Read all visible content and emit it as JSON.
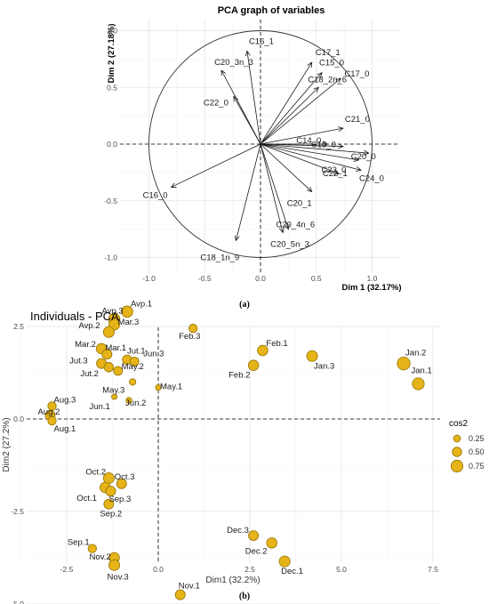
{
  "chart_data": [
    {
      "type": "scatter",
      "subtype": "pca-variables-correlation-circle",
      "title": "PCA graph of variables",
      "xlabel": "Dim 1 (32.17%)",
      "ylabel": "Dim 2 (27.18%)",
      "xlim": [
        -1.0,
        1.0
      ],
      "ylim": [
        -1.0,
        1.0
      ],
      "xticks": [
        "-1.0",
        "-0.5",
        "0.0",
        "0.5",
        "1.0"
      ],
      "yticks": [
        "-1.0",
        "-0.5",
        "0.0",
        "0.5",
        "1.0"
      ],
      "grid": true,
      "caption": "(a)",
      "arrows": [
        {
          "label": "C16_1",
          "x": -0.12,
          "y": 0.82
        },
        {
          "label": "C17_1",
          "x": 0.46,
          "y": 0.72
        },
        {
          "label": "C20_3n_3",
          "x": -0.35,
          "y": 0.65
        },
        {
          "label": "C15_0",
          "x": 0.55,
          "y": 0.63
        },
        {
          "label": "C17_0",
          "x": 0.72,
          "y": 0.58
        },
        {
          "label": "C18_2n_6",
          "x": 0.52,
          "y": 0.5
        },
        {
          "label": "C22_0",
          "x": -0.24,
          "y": 0.42
        },
        {
          "label": "C21_0",
          "x": 0.74,
          "y": 0.14
        },
        {
          "label": "C14_0",
          "x": 0.6,
          "y": 0.0
        },
        {
          "label": "C18_0",
          "x": 0.74,
          "y": -0.02
        },
        {
          "label": "C20_0",
          "x": 0.97,
          "y": -0.08
        },
        {
          "label": "C23_0",
          "x": 0.88,
          "y": -0.14
        },
        {
          "label": "C22_1",
          "x": 0.7,
          "y": -0.26
        },
        {
          "label": "C24_0",
          "x": 0.9,
          "y": -0.23
        },
        {
          "label": "C20_1",
          "x": 0.46,
          "y": -0.42
        },
        {
          "label": "C16_0",
          "x": -0.8,
          "y": -0.38
        },
        {
          "label": "C20_4n_6",
          "x": 0.25,
          "y": -0.75
        },
        {
          "label": "C20_5n_3",
          "x": 0.2,
          "y": -0.78
        },
        {
          "label": "C18_1n_9",
          "x": -0.22,
          "y": -0.85
        }
      ]
    },
    {
      "type": "scatter",
      "subtype": "pca-individuals",
      "title": "Individuals - PCA",
      "xlabel": "Dim1 (32.2%)",
      "ylabel": "Dim2 (27.2%)",
      "xlim": [
        -3.2,
        7.8
      ],
      "ylim": [
        -5.2,
        3.2
      ],
      "xticks": [
        "-2.5",
        "0.0",
        "2.5",
        "5.0",
        "7.5"
      ],
      "yticks": [
        "-5.0",
        "-2.5",
        "0.0",
        "2.5"
      ],
      "grid": true,
      "caption": "(b)",
      "legend": {
        "title": "cos2",
        "position": "right",
        "entries": [
          "0.25",
          "0.50",
          "0.75"
        ]
      },
      "points": [
        {
          "label": "Avp.3",
          "x": -1.2,
          "y": 2.7,
          "cos2": 0.7
        },
        {
          "label": "Avp.1",
          "x": -0.85,
          "y": 2.9,
          "cos2": 0.7
        },
        {
          "label": "Mar.3",
          "x": -1.2,
          "y": 2.55,
          "cos2": 0.65
        },
        {
          "label": "Avp.2",
          "x": -1.35,
          "y": 2.35,
          "cos2": 0.65
        },
        {
          "label": "Feb.3",
          "x": 0.95,
          "y": 2.45,
          "cos2": 0.4
        },
        {
          "label": "Mar.2",
          "x": -1.55,
          "y": 1.9,
          "cos2": 0.6
        },
        {
          "label": "Mar.1",
          "x": -1.4,
          "y": 1.75,
          "cos2": 0.55
        },
        {
          "label": "Jut.1",
          "x": -0.85,
          "y": 1.6,
          "cos2": 0.5
        },
        {
          "label": "Jut.3",
          "x": -1.55,
          "y": 1.5,
          "cos2": 0.55
        },
        {
          "label": "Jut.2",
          "x": -1.35,
          "y": 1.4,
          "cos2": 0.5
        },
        {
          "label": "Jun.3",
          "x": -0.65,
          "y": 1.55,
          "cos2": 0.45
        },
        {
          "label": "May.2",
          "x": -1.1,
          "y": 1.3,
          "cos2": 0.45
        },
        {
          "label": "May.3",
          "x": -0.7,
          "y": 1.0,
          "cos2": 0.2
        },
        {
          "label": "Jun.2",
          "x": -0.8,
          "y": 0.5,
          "cos2": 0.15
        },
        {
          "label": "May.1",
          "x": 0.0,
          "y": 0.85,
          "cos2": 0.1
        },
        {
          "label": "Jun.1",
          "x": -1.2,
          "y": 0.6,
          "cos2": 0.1
        },
        {
          "label": "Aug.3",
          "x": -2.9,
          "y": 0.35,
          "cos2": 0.4
        },
        {
          "label": "Aug.2",
          "x": -2.95,
          "y": 0.1,
          "cos2": 0.55
        },
        {
          "label": "Aug.1",
          "x": -2.9,
          "y": -0.05,
          "cos2": 0.4
        },
        {
          "label": "Feb.1",
          "x": 2.85,
          "y": 1.85,
          "cos2": 0.6
        },
        {
          "label": "Feb.2",
          "x": 2.6,
          "y": 1.45,
          "cos2": 0.6
        },
        {
          "label": "Jan.3",
          "x": 4.2,
          "y": 1.7,
          "cos2": 0.65
        },
        {
          "label": "Jan.2",
          "x": 6.7,
          "y": 1.5,
          "cos2": 0.85
        },
        {
          "label": "Jan.1",
          "x": 7.1,
          "y": 0.95,
          "cos2": 0.75
        },
        {
          "label": "Oct.2",
          "x": -1.35,
          "y": -1.6,
          "cos2": 0.65
        },
        {
          "label": "Oct.3",
          "x": -1.0,
          "y": -1.75,
          "cos2": 0.55
        },
        {
          "label": "Oct.1",
          "x": -1.45,
          "y": -1.85,
          "cos2": 0.6
        },
        {
          "label": "Sep.3",
          "x": -1.3,
          "y": -1.95,
          "cos2": 0.55
        },
        {
          "label": "Sep.2",
          "x": -1.35,
          "y": -2.3,
          "cos2": 0.55
        },
        {
          "label": "Sep.1",
          "x": -1.8,
          "y": -3.5,
          "cos2": 0.4
        },
        {
          "label": "Nov.2",
          "x": -1.2,
          "y": -3.75,
          "cos2": 0.6
        },
        {
          "label": "Nov.3",
          "x": -1.2,
          "y": -3.95,
          "cos2": 0.65
        },
        {
          "label": "Nov.1",
          "x": 0.6,
          "y": -4.75,
          "cos2": 0.55
        },
        {
          "label": "Dec.3",
          "x": 2.6,
          "y": -3.15,
          "cos2": 0.55
        },
        {
          "label": "Dec.2",
          "x": 3.1,
          "y": -3.35,
          "cos2": 0.6
        },
        {
          "label": "Dec.1",
          "x": 3.45,
          "y": -3.85,
          "cos2": 0.65
        }
      ]
    }
  ]
}
